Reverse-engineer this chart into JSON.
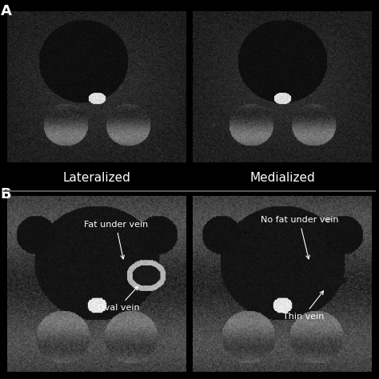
{
  "background_color": "#000000",
  "label_A": "A",
  "label_B": "B",
  "label_A_fontsize": 13,
  "label_B_fontsize": 13,
  "label_color": "#ffffff",
  "row_A_labels": [
    "Lateralized",
    "Medialized"
  ],
  "row_A_label_fontsize": 11,
  "row_B_annotations_left": [
    "Fat under vein",
    "Oval vein"
  ],
  "row_B_annotations_right": [
    "No fat under vein",
    "Thin vein"
  ],
  "annotation_fontsize": 8,
  "annotation_color": "#ffffff",
  "divider_color": "#555555",
  "divider_linewidth": 1.5
}
